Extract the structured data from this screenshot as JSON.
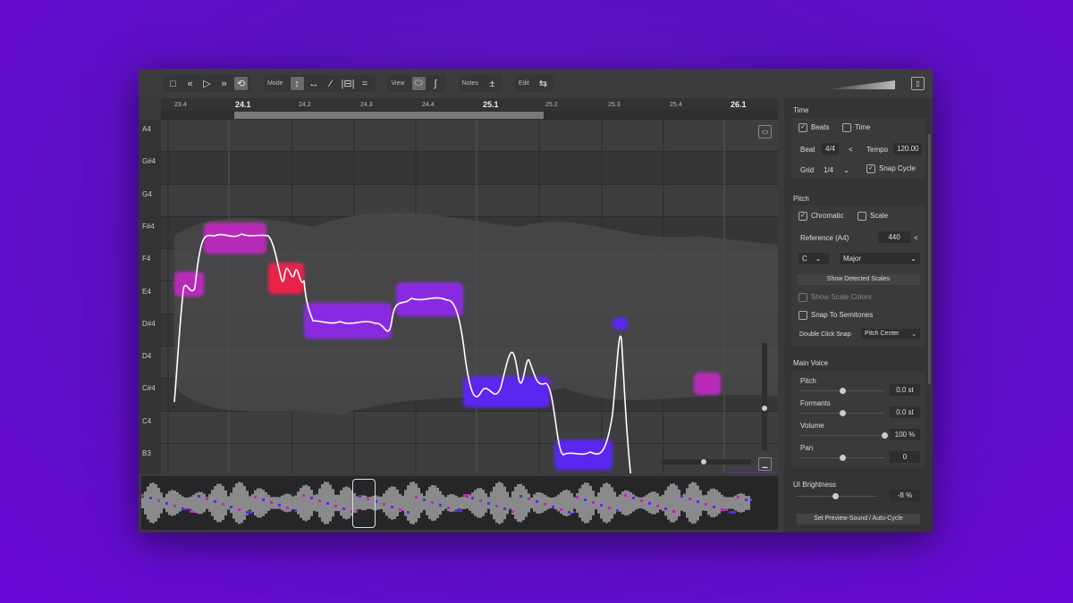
{
  "toolbar": {
    "transport": [
      "stop-icon",
      "rewind-icon",
      "play-icon",
      "fast-forward-icon",
      "loop-icon"
    ],
    "mode_label": "Mode",
    "view_label": "View",
    "notes_label": "Notes",
    "notes_icon": "±",
    "edit_label": "Edit"
  },
  "ruler": {
    "ticks": [
      {
        "label": "23.4",
        "major": false
      },
      {
        "label": "24.1",
        "major": true
      },
      {
        "label": "24.2",
        "major": false
      },
      {
        "label": "24.3",
        "major": false
      },
      {
        "label": "24.4",
        "major": false
      },
      {
        "label": "25.1",
        "major": true
      },
      {
        "label": "25.2",
        "major": false
      },
      {
        "label": "25.3",
        "major": false
      },
      {
        "label": "25.4",
        "major": false
      },
      {
        "label": "26.1",
        "major": true
      }
    ]
  },
  "keys": [
    "A4",
    "G#4",
    "G4",
    "F#4",
    "F4",
    "E4",
    "D#4",
    "D4",
    "C#4",
    "C4",
    "B3"
  ],
  "colors": {
    "magenta": "#b82ab8",
    "red": "#e8204a",
    "purple": "#8a2ae0",
    "blue": "#5a28f0",
    "accent_bg": "#6a10d0"
  },
  "panel": {
    "time": {
      "title": "Time",
      "beats": "Beats",
      "beats_checked": true,
      "time": "Time",
      "time_checked": false,
      "beat_label": "Beat",
      "beat_value": "4/4",
      "tempo_label": "Tempo",
      "tempo_value": "120.00",
      "grid_label": "Grid",
      "grid_value": "1/4",
      "snap_cycle": "Snap Cycle",
      "snap_cycle_checked": true
    },
    "pitch": {
      "title": "Pitch",
      "chromatic": "Chromatic",
      "chromatic_checked": true,
      "scale": "Scale",
      "scale_checked": false,
      "reference_label": "Reference (A4)",
      "reference_value": "440",
      "key": "C",
      "mode": "Major",
      "show_detected": "Show Detected Scales",
      "show_scale_colors": "Show Scale Colors",
      "snap_semitones": "Snap To Semitones",
      "double_click_label": "Double Click Snap",
      "double_click_value": "Pitch Center"
    },
    "voice": {
      "title": "Main Voice",
      "pitch_label": "Pitch",
      "pitch_value": "0.0 st",
      "pitch_level": 0.5,
      "formants_label": "Formants",
      "formants_value": "0.0 st",
      "formants_level": 0.5,
      "volume_label": "Volume",
      "volume_value": "100 %",
      "volume_level": 1.0,
      "pan_label": "Pan",
      "pan_value": "0",
      "pan_level": 0.5
    },
    "ui_brightness_label": "UI Brightness",
    "ui_brightness_value": "-8 %",
    "preview_button": "Set Preview-Sound / Auto-Cycle"
  }
}
